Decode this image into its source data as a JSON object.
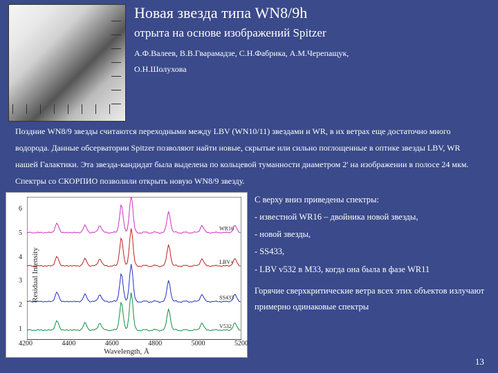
{
  "header": {
    "title": "Новая звезда типа WN8/9h",
    "subtitle": "отрыта на основе изображений Spitzer",
    "authors_line1": "А.Ф.Валеев, В.В.Гварамадзе, С.Н.Фабрика, А.М.Черепащук,",
    "authors_line2": "О.Н.Шолухова"
  },
  "body": "Поздние WN8/9 звезды считаются переходными между LBV (WN10/11) звездами и WR, в их ветрах еще достаточно много водорода. Данные обсерватории Spitzer позволяют найти новые, скрытые или сильно поглощенные в оптике звезды LBV, WR нашей Галактики. Эта звезда-кандидат была выделена по кольцевой туманности диаметром 2' на изображении в полосе 24 мкм. Спектры со СКОРПИО позволили открыть новую WN8/9 звезду.",
  "side": {
    "intro": "С верху вниз приведены спектры:",
    "items": [
      "- известной WR16 – двойника новой звезды,",
      "- новой звезды,",
      "- SS433,",
      "- LBV v532 в M33, когда она была в фазе WR11"
    ],
    "conclusion": "Горячие сверхкритические ветра всех этих объектов излучают примерно одинаковые спектры"
  },
  "page_number": "13",
  "chart": {
    "type": "line",
    "xlabel": "Wavelength, Å",
    "ylabel": "Residual Intensity",
    "xlim": [
      4200,
      5200
    ],
    "xticks": [
      4200,
      4400,
      4600,
      4800,
      5000,
      5200
    ],
    "ylim": [
      0.5,
      6.5
    ],
    "yticks": [
      1,
      2,
      3,
      4,
      5,
      6
    ],
    "background_color": "#ffffff",
    "axis_color": "#222222",
    "series": [
      {
        "label": "WR16",
        "color": "#d030c0",
        "offset": 5.0,
        "linewidth": 1
      },
      {
        "label": "LBV+",
        "color": "#c02020",
        "offset": 3.6,
        "linewidth": 1
      },
      {
        "label": "SS433",
        "color": "#2030c0",
        "offset": 2.1,
        "linewidth": 1
      },
      {
        "label": "V532",
        "color": "#109040",
        "offset": 0.9,
        "linewidth": 1
      }
    ],
    "peaks_x": [
      4340,
      4471,
      4540,
      4640,
      4686,
      4861,
      5016,
      5170
    ],
    "peak_heights": [
      0.4,
      0.3,
      0.3,
      1.2,
      1.6,
      0.9,
      0.3,
      0.3
    ],
    "label_fontsize": 11,
    "tick_fontsize": 10
  }
}
